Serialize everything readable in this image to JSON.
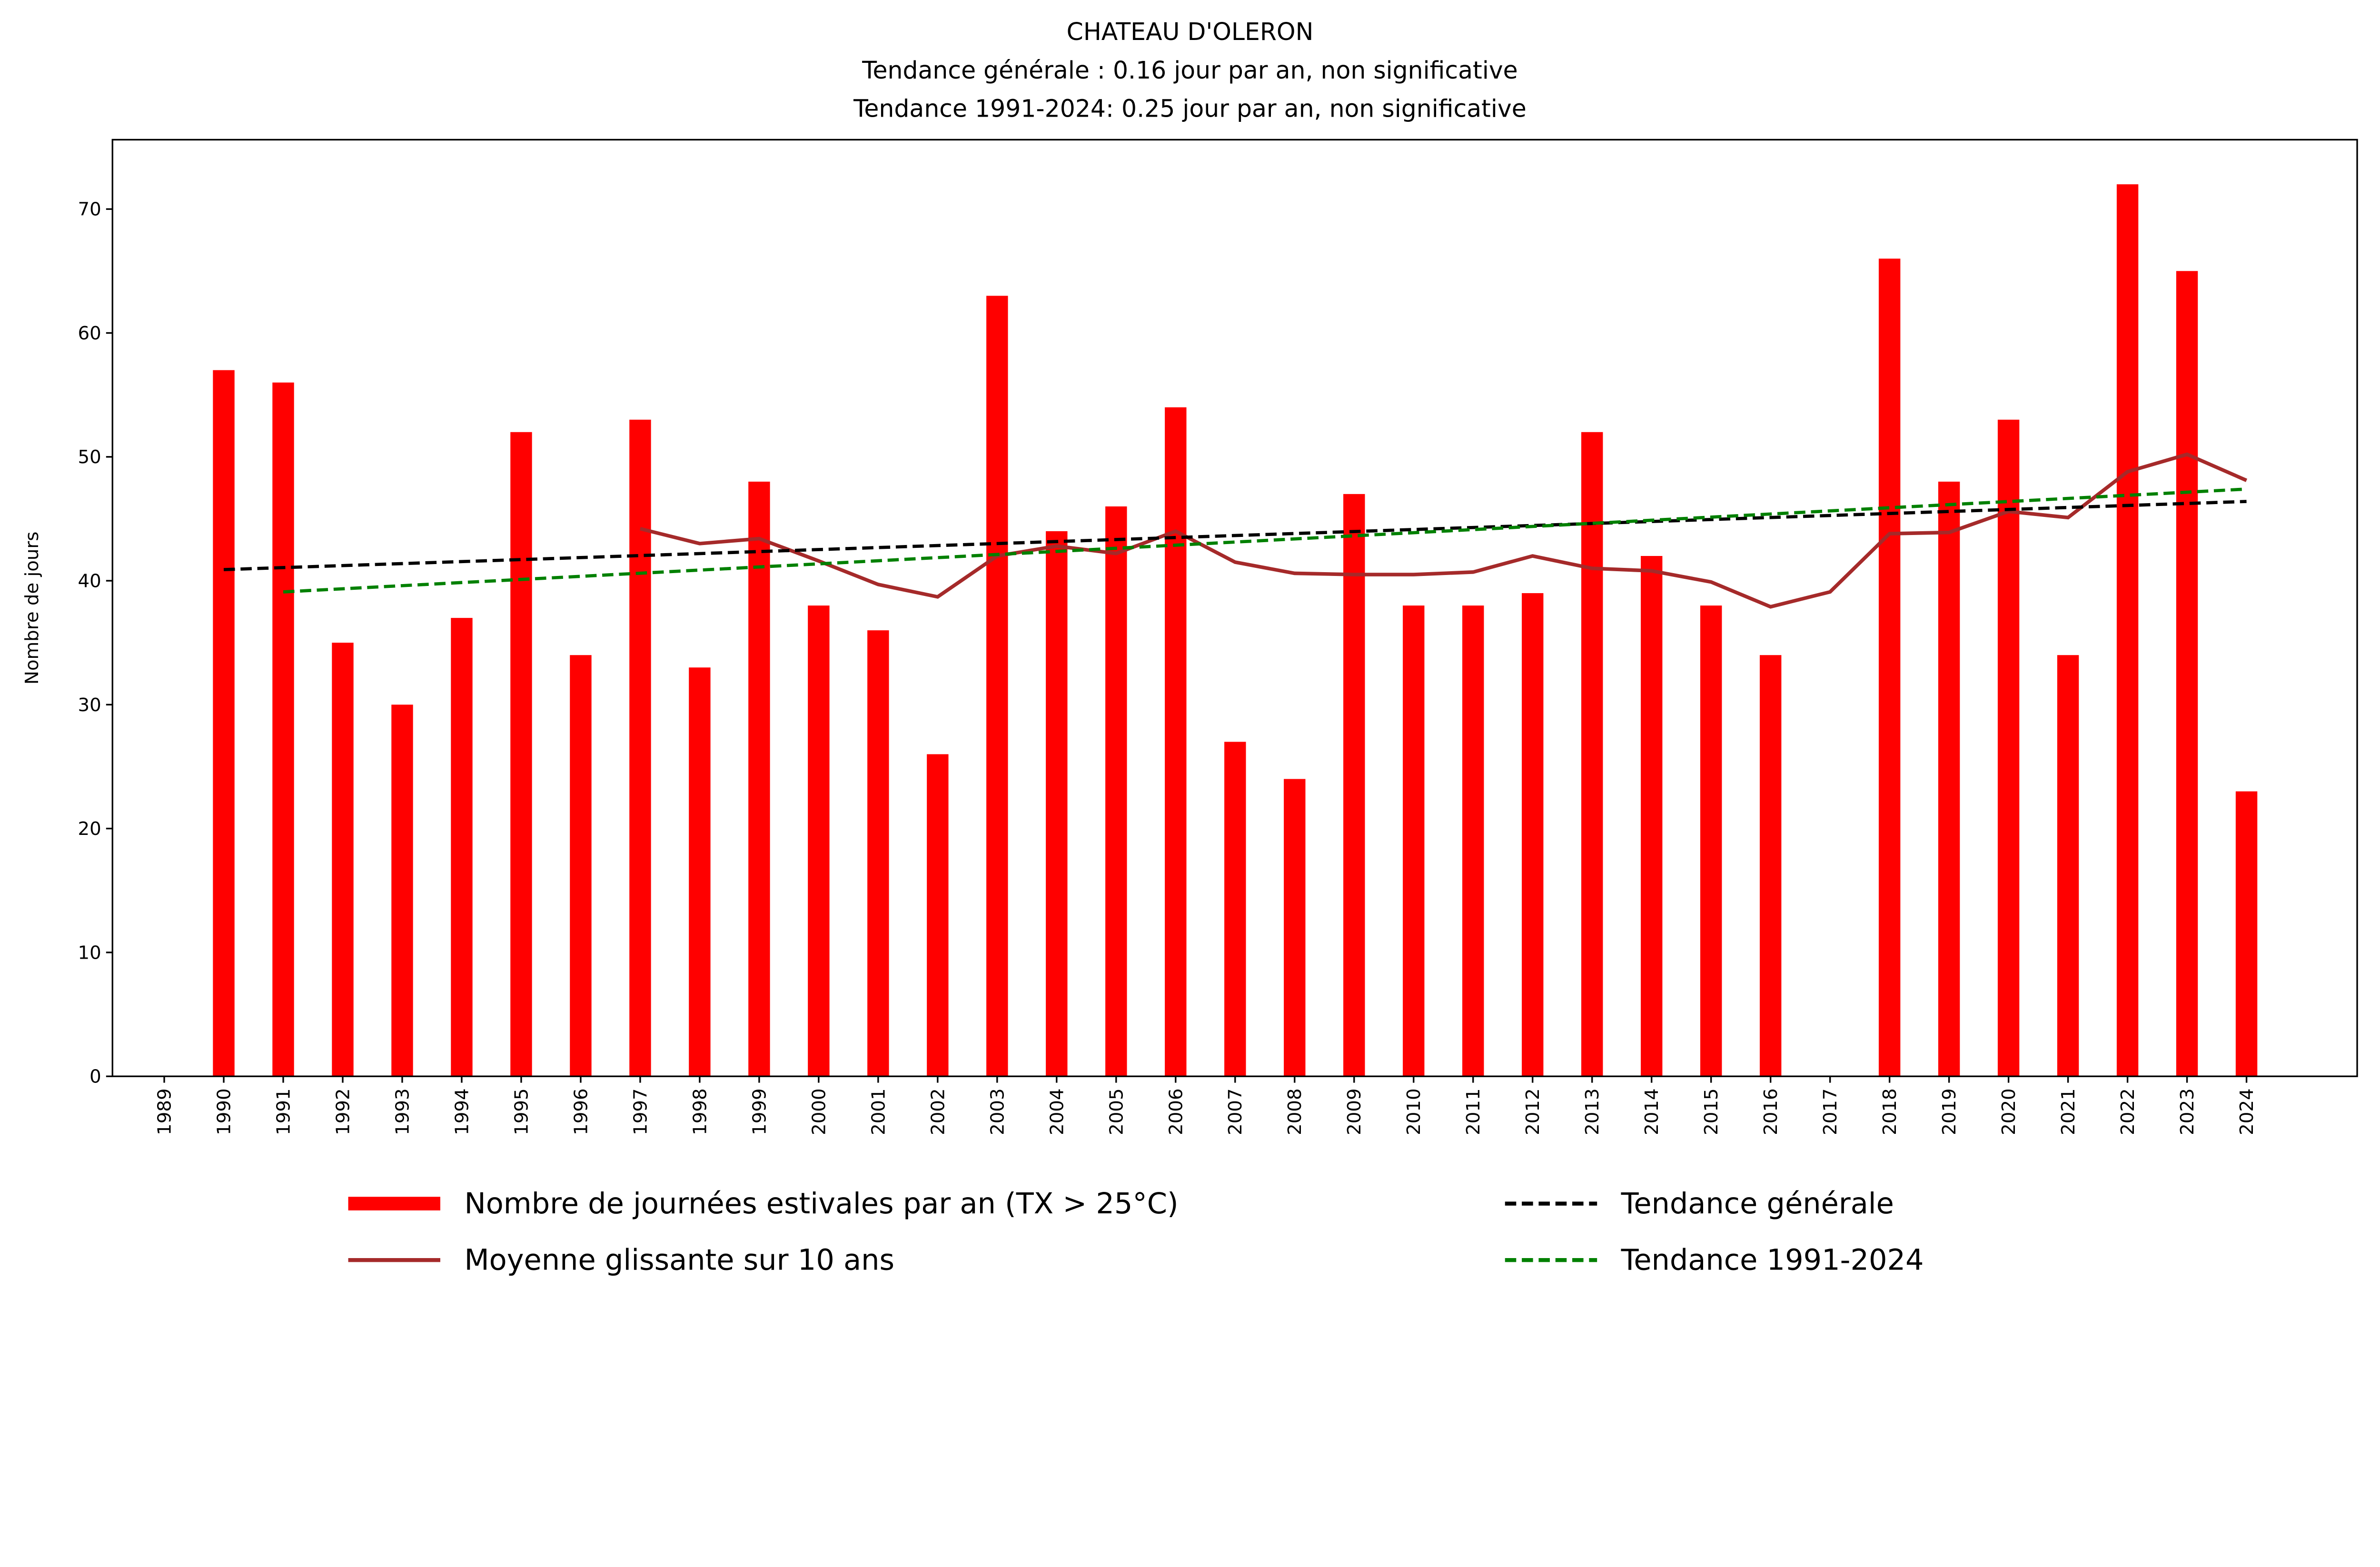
{
  "chart_data": {
    "type": "bar",
    "title": [
      "CHATEAU D'OLERON",
      "Tendance générale : 0.16 jour par an, non significative",
      "Tendance 1991-2024: 0.25 jour par an, non significative"
    ],
    "xlabel": "",
    "ylabel": "Nombre de jours",
    "ylim": [
      0,
      75.6
    ],
    "xlim": [
      1988.13,
      2025.86
    ],
    "yticks": [
      0,
      10,
      20,
      30,
      40,
      50,
      60,
      70
    ],
    "grid": false,
    "legend_placement": "bottom-outside",
    "categories": [
      1989,
      1990,
      1991,
      1992,
      1993,
      1994,
      1995,
      1996,
      1997,
      1998,
      1999,
      2000,
      2001,
      2002,
      2003,
      2004,
      2005,
      2006,
      2007,
      2008,
      2009,
      2010,
      2011,
      2012,
      2013,
      2014,
      2015,
      2016,
      2017,
      2018,
      2019,
      2020,
      2021,
      2022,
      2023,
      2024
    ],
    "series": [
      {
        "name": "Nombre de journées estivales par an (TX > 25°C)",
        "kind": "bar",
        "color": "#ff0000",
        "values": [
          null,
          57,
          56,
          35,
          30,
          37,
          52,
          34,
          53,
          33,
          48,
          38,
          36,
          26,
          63,
          44,
          46,
          54,
          27,
          24,
          47,
          38,
          38,
          39,
          52,
          42,
          38,
          34,
          null,
          66,
          48,
          53,
          34,
          72,
          65,
          23
        ]
      },
      {
        "name": "Moyenne glissante sur 10 ans",
        "kind": "line",
        "color": "#a52a2a",
        "x": [
          1997,
          1998,
          1999,
          2000,
          2001,
          2002,
          2003,
          2004,
          2005,
          2006,
          2007,
          2008,
          2009,
          2010,
          2011,
          2012,
          2013,
          2014,
          2015,
          2016,
          2017,
          2018,
          2019,
          2020,
          2021,
          2022,
          2023,
          2024
        ],
        "values": [
          44.2,
          43.0,
          43.4,
          41.6,
          39.7,
          38.7,
          42.0,
          42.8,
          42.2,
          44.0,
          41.5,
          40.6,
          40.5,
          40.5,
          40.7,
          42.0,
          41.0,
          40.8,
          39.9,
          37.9,
          39.1,
          43.8,
          43.9,
          45.6,
          45.1,
          48.8,
          50.2,
          48.1
        ]
      },
      {
        "name": "Tendance générale",
        "kind": "dashed",
        "color": "#000000",
        "x": [
          1990,
          2024
        ],
        "values": [
          40.9,
          46.4
        ]
      },
      {
        "name": "Tendance 1991-2024",
        "kind": "dashed",
        "color": "#008000",
        "x": [
          1991,
          2024
        ],
        "values": [
          39.1,
          47.4
        ]
      }
    ]
  }
}
